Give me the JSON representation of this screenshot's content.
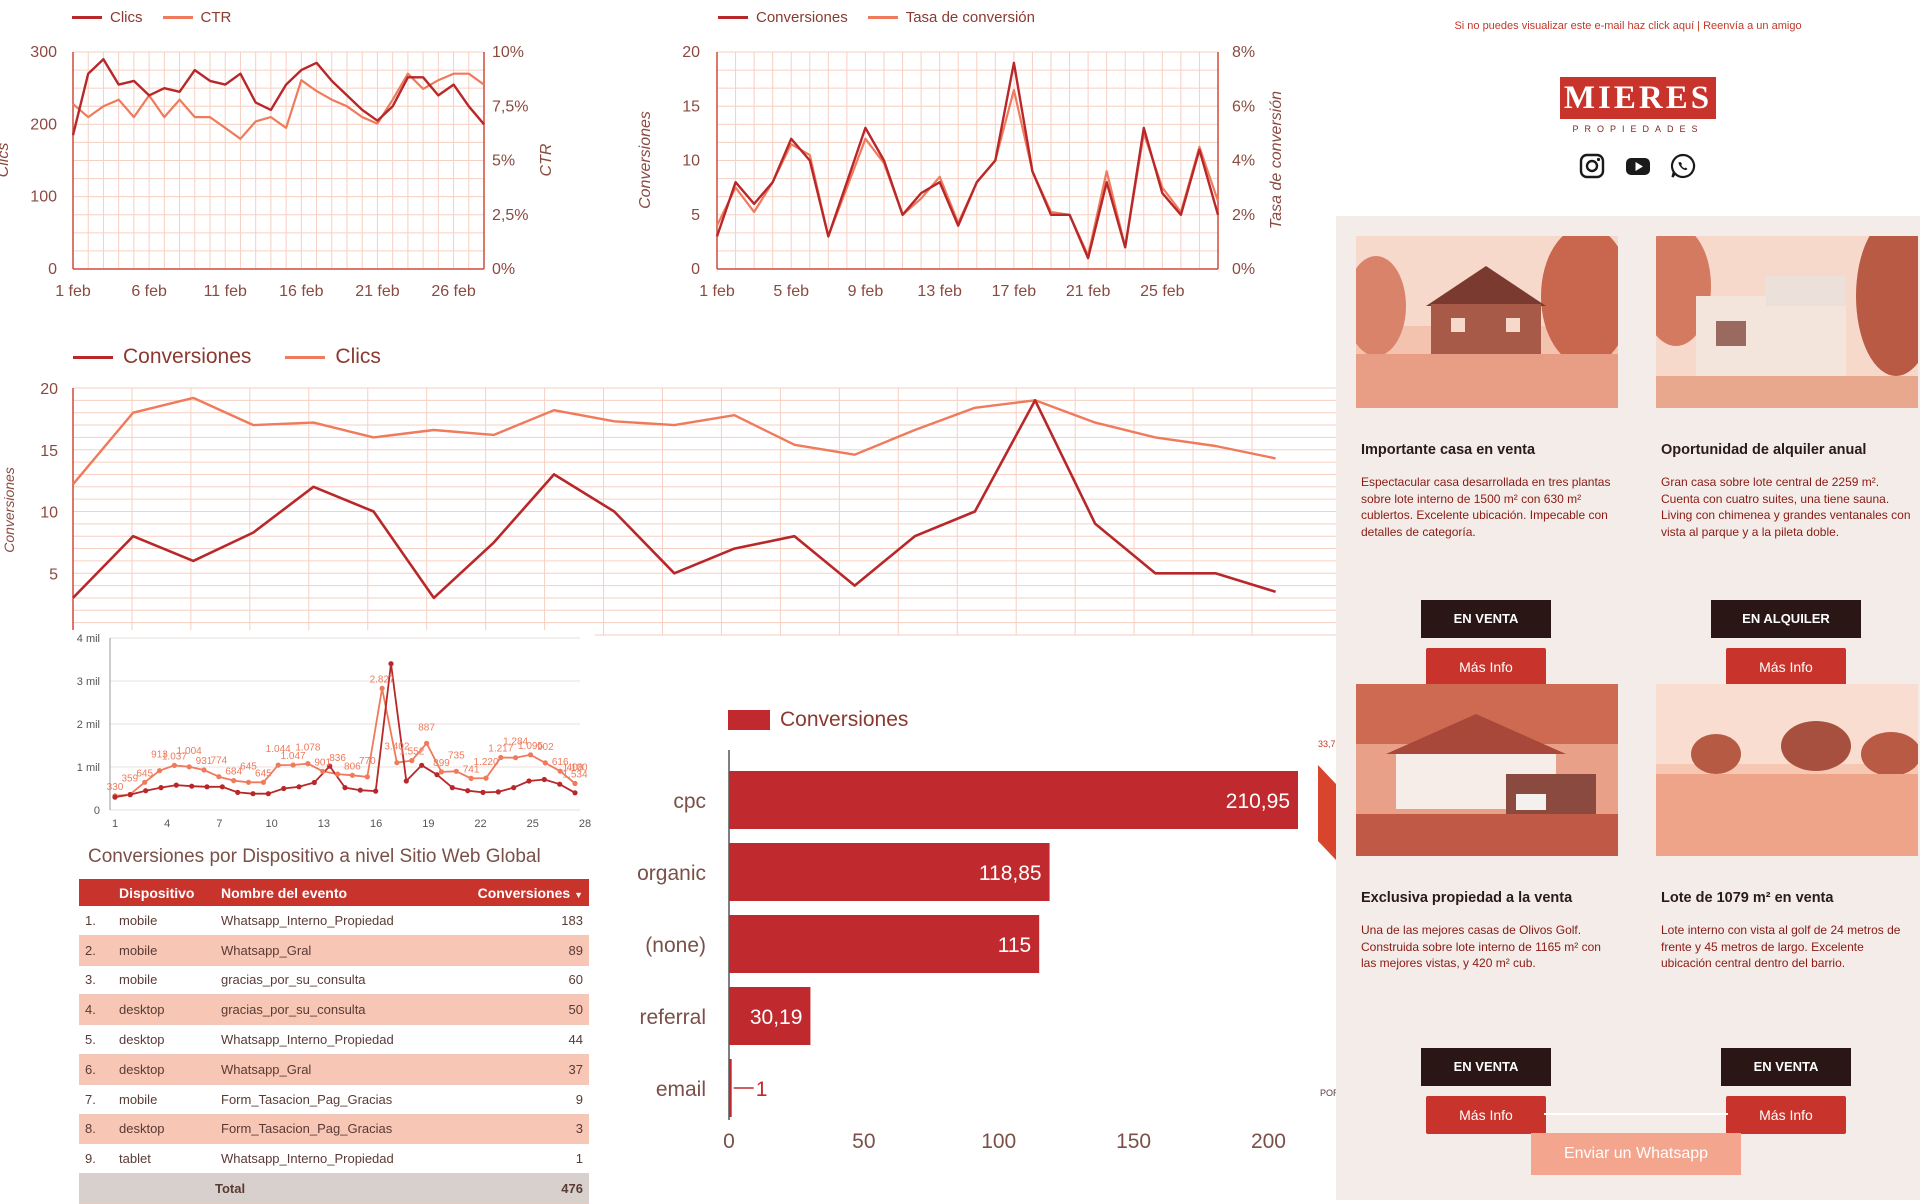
{
  "colors": {
    "dark_red": "#b8282a",
    "light_red": "#ef7a5c",
    "grid": "#f6d0c2",
    "bar": "#c02a2e",
    "email_red": "#c8342c"
  },
  "chart_data": [
    {
      "id": "clics-ctr",
      "type": "line",
      "legend": [
        "Clics",
        "CTR"
      ],
      "xlabel": "",
      "ylabel": "Clics",
      "y2label": "CTR",
      "x_ticks": [
        "1 feb",
        "6 feb",
        "11 feb",
        "16 feb",
        "21 feb",
        "26 feb"
      ],
      "y_ticks": [
        "0",
        "100",
        "200",
        "300"
      ],
      "y2_ticks": [
        "0%",
        "2,5%",
        "5%",
        "7,5%",
        "10%"
      ],
      "ylim": [
        0,
        300
      ],
      "y2lim": [
        0,
        10
      ],
      "series": [
        {
          "name": "Clics",
          "values": [
            185,
            270,
            290,
            255,
            260,
            240,
            250,
            245,
            275,
            260,
            255,
            270,
            230,
            220,
            255,
            275,
            285,
            260,
            240,
            220,
            205,
            225,
            265,
            265,
            240,
            255,
            225,
            200
          ]
        },
        {
          "name": "CTR",
          "values": [
            7.6,
            7.0,
            7.5,
            7.8,
            7.0,
            8.0,
            7.0,
            7.8,
            7.0,
            7.0,
            6.5,
            6.0,
            6.8,
            7.0,
            6.5,
            8.7,
            8.2,
            7.8,
            7.5,
            7.0,
            6.7,
            7.8,
            9.0,
            8.3,
            8.7,
            9.0,
            9.0,
            8.5
          ]
        }
      ]
    },
    {
      "id": "conv-tasa",
      "type": "line",
      "legend": [
        "Conversiones",
        "Tasa de conversión"
      ],
      "xlabel": "",
      "ylabel": "Conversiones",
      "y2label": "Tasa de conversión",
      "x_ticks": [
        "1 feb",
        "5 feb",
        "9 feb",
        "13 feb",
        "17 feb",
        "21 feb",
        "25 feb"
      ],
      "y_ticks": [
        "0",
        "5",
        "10",
        "15",
        "20"
      ],
      "y2_ticks": [
        "0%",
        "2%",
        "4%",
        "6%",
        "8%"
      ],
      "ylim": [
        0,
        20
      ],
      "y2lim": [
        0,
        8
      ],
      "series": [
        {
          "name": "Conversiones",
          "values": [
            3,
            8,
            6,
            8,
            12,
            10,
            3,
            8,
            13,
            10,
            5,
            7,
            8,
            4,
            8,
            10,
            19,
            9,
            5,
            5,
            1,
            8,
            2,
            13,
            7,
            5,
            11,
            5
          ]
        },
        {
          "name": "Tasa de conversión",
          "values": [
            1.6,
            3.0,
            2.1,
            3.2,
            4.6,
            4.2,
            1.2,
            3.0,
            4.8,
            3.9,
            2.0,
            2.6,
            3.4,
            1.7,
            3.2,
            4.0,
            6.6,
            3.6,
            2.1,
            2.0,
            0.5,
            3.6,
            0.8,
            5.0,
            3.0,
            2.1,
            4.5,
            2.5
          ]
        }
      ]
    },
    {
      "id": "conv-clics-big",
      "type": "line",
      "legend": [
        "Conversiones",
        "Clics"
      ],
      "ylabel": "Conversiones",
      "y_ticks": [
        "5",
        "10",
        "15",
        "20"
      ],
      "ylim": [
        0,
        20
      ],
      "series": [
        {
          "name": "Conversiones",
          "values": [
            3,
            8,
            6,
            8.3,
            12,
            10,
            3,
            7.5,
            13,
            10,
            5,
            7,
            8,
            4,
            8,
            10,
            19,
            9,
            5,
            5,
            3.5
          ]
        },
        {
          "name": "Clics",
          "values": [
            12.2,
            18,
            19.2,
            17,
            17.2,
            16,
            16.6,
            16.2,
            18.2,
            17.3,
            17,
            17.8,
            15.4,
            14.6,
            16.6,
            18.4,
            19,
            17.2,
            16,
            15.3,
            14.3
          ]
        }
      ]
    },
    {
      "id": "mini-chart",
      "type": "line",
      "y_ticks": [
        "0",
        "1 mil",
        "2 mil",
        "3 mil",
        "4 mil"
      ],
      "x_ticks": [
        "1",
        "4",
        "7",
        "10",
        "13",
        "16",
        "19",
        "22",
        "25",
        "28"
      ],
      "ylim": [
        0,
        4000
      ],
      "series": [
        {
          "name": "",
          "values": [
            330,
            359,
            645,
            913,
            1037,
            1004,
            931,
            774,
            684,
            645,
            645,
            1044,
            1047,
            1078,
            901,
            836,
            806,
            770,
            2827,
            1100,
            1150,
            1552,
            887,
            899,
            735,
            741,
            1220,
            1217,
            1284,
            1095,
            902,
            616
          ]
        },
        {
          "name": "",
          "values": [
            300,
            359,
            450,
            520,
            580,
            553,
            540,
            540,
            410,
            380,
            380,
            500,
            540,
            640,
            1020,
            520,
            460,
            440,
            3402,
            674,
            1040,
            820,
            520,
            450,
            410,
            420,
            520,
            675,
            710,
            600,
            400
          ]
        }
      ],
      "point_labels": [
        "330",
        "359",
        "645",
        "913",
        "1.037",
        "1.004",
        "931",
        "774",
        "684",
        "645",
        "645",
        "1.044",
        "1.047",
        "1.078",
        "901",
        "836",
        "806",
        "770",
        "2.827",
        "3.402",
        "1.552",
        "887",
        "899",
        "735",
        "741",
        "1.220",
        "1.217",
        "1.284",
        "1.095",
        "902",
        "616",
        "408",
        "1.534",
        "1.100"
      ]
    },
    {
      "id": "conv-bar",
      "type": "bar",
      "legend": [
        "Conversiones"
      ],
      "categories": [
        "cpc",
        "organic",
        "(none)",
        "referral",
        "email"
      ],
      "values": [
        210.95,
        118.85,
        115,
        30.19,
        1
      ],
      "value_labels": [
        "210,95",
        "118,85",
        "115",
        "30,19",
        "1"
      ],
      "x_ticks": [
        "0",
        "50",
        "100",
        "150",
        "200"
      ],
      "xlim": [
        0,
        210.95
      ]
    }
  ],
  "table": {
    "title": "Conversiones por Dispositivo a nivel Sitio Web Global",
    "headers": [
      "Dispositivo",
      "Nombre del evento",
      "Conversiones"
    ],
    "sort_arrow": "▼",
    "rows": [
      {
        "n": "1.",
        "device": "mobile",
        "event": "Whatsapp_Interno_Propiedad",
        "value": "183"
      },
      {
        "n": "2.",
        "device": "mobile",
        "event": "Whatsapp_Gral",
        "value": "89"
      },
      {
        "n": "3.",
        "device": "mobile",
        "event": "gracias_por_su_consulta",
        "value": "60"
      },
      {
        "n": "4.",
        "device": "desktop",
        "event": "gracias_por_su_consulta",
        "value": "50"
      },
      {
        "n": "5.",
        "device": "desktop",
        "event": "Whatsapp_Interno_Propiedad",
        "value": "44"
      },
      {
        "n": "6.",
        "device": "desktop",
        "event": "Whatsapp_Gral",
        "value": "37"
      },
      {
        "n": "7.",
        "device": "mobile",
        "event": "Form_Tasacion_Pag_Gracias",
        "value": "9"
      },
      {
        "n": "8.",
        "device": "desktop",
        "event": "Form_Tasacion_Pag_Gracias",
        "value": "3"
      },
      {
        "n": "9.",
        "device": "tablet",
        "event": "Whatsapp_Interno_Propiedad",
        "value": "1"
      }
    ],
    "total_label": "Total",
    "total_value": "476"
  },
  "fragments": {
    "partial_value": "33,7",
    "partial_label": "POR"
  },
  "email": {
    "top_text_a": "Si no puedes visualizar este e-mail haz ",
    "top_link_a": "click aquí",
    "top_sep": " | ",
    "top_link_b": "Reenvía a un amigo",
    "logo_text": "MIERES",
    "logo_sub": "PROPIEDADES",
    "social_icons": [
      "instagram-icon",
      "youtube-icon",
      "whatsapp-icon"
    ],
    "cards": [
      {
        "title": "Importante casa en venta",
        "desc": "Espectacular casa desarrollada en tres plantas sobre lote interno de 1500 m² con 630 m² cublertos. Excelente ubicación. Impecable con detalles de categoría.",
        "tag": "EN VENTA",
        "more": "Más Info"
      },
      {
        "title": "Oportunidad de alquiler anual",
        "desc": "Gran casa sobre lote central de 2259 m². Cuenta con cuatro suites, una tiene sauna. Living con chimenea y grandes ventanales con vista al parque y a la pileta doble.",
        "tag": "EN ALQUILER",
        "more": "Más Info"
      },
      {
        "title": "Exclusiva propiedad a la venta",
        "desc": "Una de las mejores casas de Olivos Golf. Construida sobre lote interno de 1165 m² con las mejores vistas, y 420 m² cub.",
        "tag": "EN VENTA",
        "more": "Más Info"
      },
      {
        "title": "Lote de 1079 m² en venta",
        "desc": "Lote interno con vista al golf de 24 metros de frente y 45 metros de largo. Excelente ubicación central dentro del barrio.",
        "tag": "EN VENTA",
        "more": "Más Info"
      }
    ],
    "whatsapp_button": "Enviar un Whatsapp"
  }
}
